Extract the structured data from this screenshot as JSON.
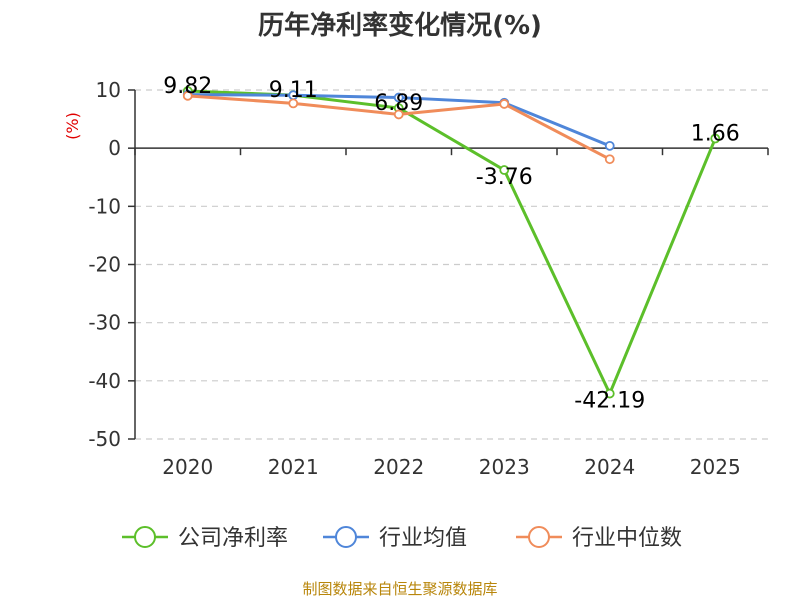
{
  "chart_data": {
    "type": "line",
    "title": "历年净利率变化情况(%)",
    "ylabel": "(%)",
    "xlabel": "",
    "categories": [
      "2020",
      "2021",
      "2022",
      "2023",
      "2024",
      "2025"
    ],
    "ylim": [
      -50,
      10
    ],
    "yticks": [
      10,
      0,
      -10,
      -20,
      -30,
      -40,
      -50
    ],
    "grid": true,
    "legend_position": "bottom",
    "series": [
      {
        "name": "公司净利率",
        "color": "#5cbf2a",
        "values": [
          9.82,
          9.11,
          6.89,
          -3.76,
          -42.19,
          1.66
        ],
        "labels": [
          "9.82",
          "9.11",
          "6.89",
          "-3.76",
          "-42.19",
          "1.66"
        ]
      },
      {
        "name": "行业均值",
        "color": "#4f86d9",
        "values": [
          9.2,
          9.1,
          8.7,
          7.8,
          0.4,
          null
        ]
      },
      {
        "name": "行业中位数",
        "color": "#f08c5a",
        "values": [
          9.0,
          7.7,
          5.8,
          7.6,
          -1.9,
          null
        ]
      }
    ]
  },
  "source": "制图数据来自恒生聚源数据库"
}
